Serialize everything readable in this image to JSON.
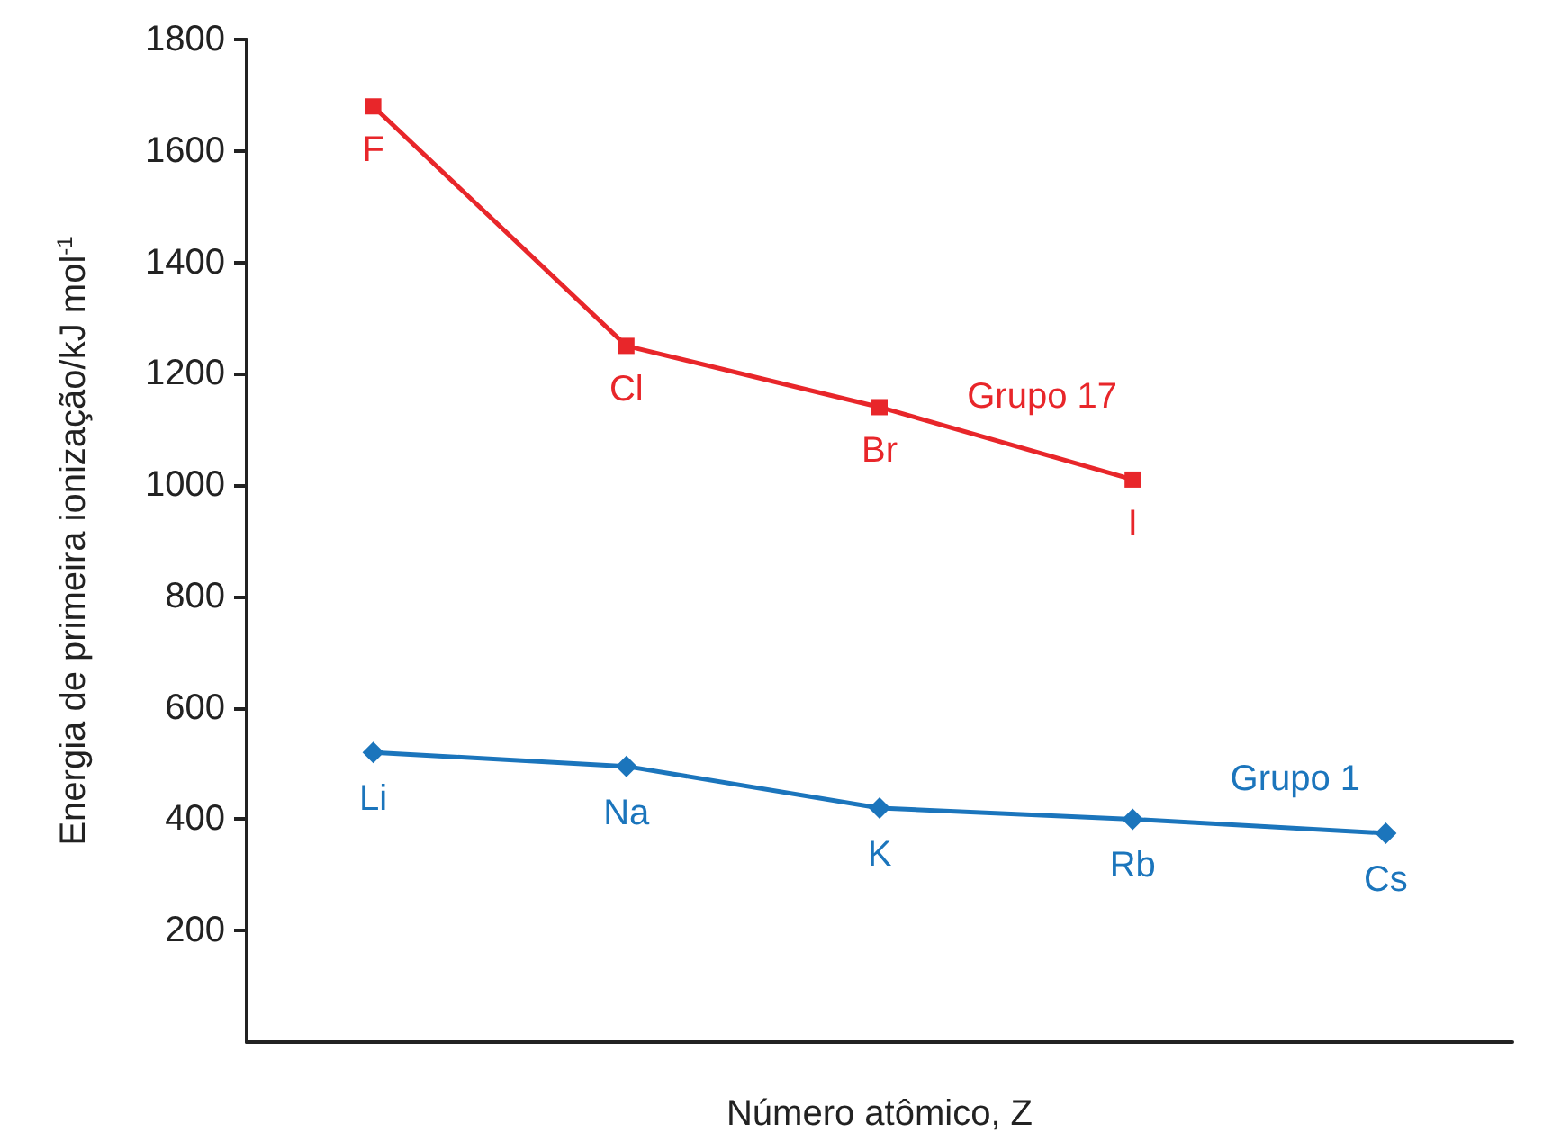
{
  "chart_data": {
    "type": "line",
    "xlabel": "Número atômico, Z",
    "ylabel": "Energia de primeira ionização/kJ mol$^{-1}$",
    "categories": [
      null,
      null,
      null,
      null,
      null
    ],
    "ylim": [
      0,
      1800
    ],
    "yticks": [
      200,
      400,
      600,
      800,
      1000,
      1200,
      1400,
      1600,
      1800
    ],
    "tick_labels": "y",
    "legend": false,
    "series": [
      {
        "name": "Grupo 17",
        "color": "#e8262a",
        "marker": "square",
        "values": [
          1680,
          1250,
          1140,
          1010,
          null
        ],
        "value_labels": [
          "F",
          "Cl",
          "Br",
          "I",
          null
        ]
      },
      {
        "name": "Grupo 1",
        "color": "#1b75bc",
        "marker": "diamond",
        "values": [
          520,
          495,
          420,
          400,
          375
        ],
        "value_labels": [
          "Li",
          "Na",
          "K",
          "Rb",
          "Cs"
        ]
      }
    ]
  }
}
